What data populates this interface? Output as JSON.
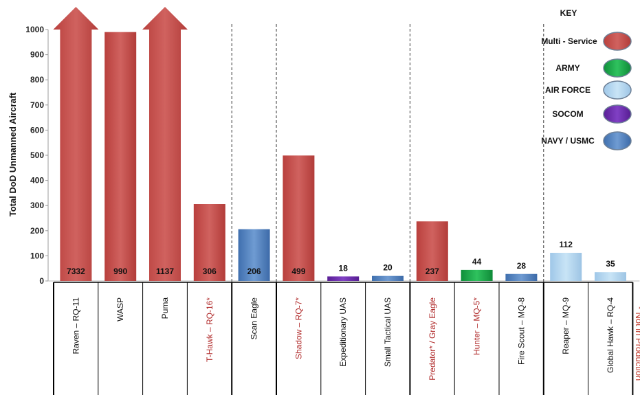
{
  "chart_data": {
    "type": "bar",
    "ylabel": "Total DoD Unmanned Aircraft",
    "ylim": [
      0,
      1000
    ],
    "yticks": [
      0,
      100,
      200,
      300,
      400,
      500,
      600,
      700,
      800,
      900,
      1000
    ],
    "grid": false,
    "legend_position": "top-right",
    "categories": [
      "Raven – RQ-11",
      "WASP",
      "Puma",
      "T-Hawk – RQ-16*",
      "Scan Eagle",
      "Shadow – RQ-7*",
      "Expeditionary UAS",
      "Small Tactical UAS",
      "Predator* / Gray Eagle",
      "Hunter – MQ-5*",
      "Fire Scout – MQ-8",
      "Reaper – MQ-9",
      "Global Hawk – RQ-4"
    ],
    "values": [
      7332,
      990,
      1137,
      306,
      206,
      499,
      18,
      20,
      237,
      44,
      28,
      112,
      35
    ],
    "value_labels": [
      "7332",
      "990",
      "1137",
      "306",
      "206",
      "499",
      "18",
      "20",
      "237",
      "44",
      "28",
      "112",
      "35"
    ],
    "service": [
      "Multi - Service",
      "Multi - Service",
      "Multi - Service",
      "Multi - Service",
      "NAVY / USMC",
      "Multi - Service",
      "SOCOM",
      "NAVY / USMC",
      "Multi - Service",
      "ARMY",
      "NAVY / USMC",
      "AIR FORCE",
      "AIR FORCE"
    ],
    "not_in_production": [
      false,
      false,
      false,
      true,
      false,
      true,
      false,
      false,
      true,
      true,
      false,
      false,
      false
    ],
    "exceeds_axis": [
      true,
      false,
      true,
      false,
      false,
      false,
      false,
      false,
      false,
      false,
      false,
      false,
      false
    ],
    "groups": [
      [
        0,
        3
      ],
      [
        4,
        4
      ],
      [
        5,
        7
      ],
      [
        8,
        10
      ],
      [
        11,
        12
      ]
    ],
    "legend": {
      "title": "KEY",
      "entries": [
        {
          "name": "Multi - Service",
          "color": "#c0504d"
        },
        {
          "name": "ARMY",
          "color": "#1aa84a"
        },
        {
          "name": "AIR FORCE",
          "color": "#bfe3ef"
        },
        {
          "name": "SOCOM",
          "color": "#6a2aa8"
        },
        {
          "name": "NAVY / USMC",
          "color": "#4f81bd"
        }
      ]
    },
    "note": "* Not in Production"
  }
}
